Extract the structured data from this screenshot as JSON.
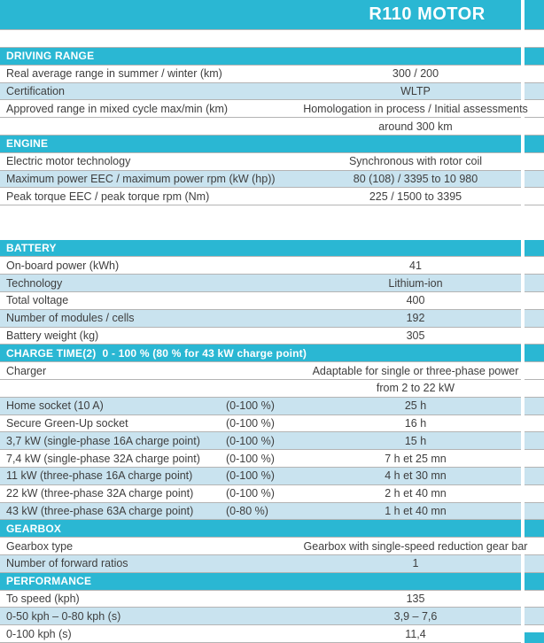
{
  "title": "R110 MOTOR",
  "colors": {
    "accent": "#2ab7d3",
    "alt_row": "#c9e3ef",
    "header_text": "#ffffff",
    "body_text": "#3e3e3e",
    "border": "#b4b4b4"
  },
  "sections": [
    {
      "header": "DRIVING RANGE",
      "gap_after": false,
      "rows": [
        {
          "label": "Real average range in summer / winter (km)",
          "qualifier": "",
          "value": "300 / 200",
          "alt": false
        },
        {
          "label": "Certification",
          "qualifier": "",
          "value": "WLTP",
          "alt": true
        },
        {
          "label": "Approved range in mixed cycle max/min (km)",
          "qualifier": "",
          "value": "Homologation in process / Initial assessments",
          "alt": false
        },
        {
          "label": "",
          "qualifier": "",
          "value": "around 300 km",
          "alt": false
        }
      ]
    },
    {
      "header": "ENGINE",
      "gap_after": true,
      "rows": [
        {
          "label": "Electric motor technology",
          "qualifier": "",
          "value": "Synchronous with rotor coil",
          "alt": false
        },
        {
          "label": "Maximum power EEC / maximum power rpm (kW (hp))",
          "qualifier": "",
          "value": "80 (108) / 3395 to 10 980",
          "alt": true
        },
        {
          "label": "Peak torque EEC / peak torque rpm (Nm)",
          "qualifier": "",
          "value": "225 / 1500 to 3395",
          "alt": false
        }
      ]
    },
    {
      "header": "BATTERY",
      "gap_after": false,
      "rows": [
        {
          "label": "On-board power (kWh)",
          "qualifier": "",
          "value": "41",
          "alt": false
        },
        {
          "label": "Technology",
          "qualifier": "",
          "value": "Lithium-ion",
          "alt": true
        },
        {
          "label": "Total voltage",
          "qualifier": "",
          "value": "400",
          "alt": false
        },
        {
          "label": "Number of modules / cells",
          "qualifier": "",
          "value": "192",
          "alt": true
        },
        {
          "label": "Battery weight (kg)",
          "qualifier": "",
          "value": "305",
          "alt": false
        }
      ]
    },
    {
      "header": "CHARGE TIME(2)  0 - 100 % (80 % for 43 kW charge point)",
      "gap_after": false,
      "rows": [
        {
          "label": "Charger",
          "qualifier": "",
          "value": "Adaptable for single or three-phase power",
          "alt": false
        },
        {
          "label": "",
          "qualifier": "",
          "value": "from 2 to 22 kW",
          "alt": false
        },
        {
          "label": "Home socket (10 A)",
          "qualifier": "(0-100 %)",
          "value": "25 h",
          "alt": true
        },
        {
          "label": "Secure Green-Up socket",
          "qualifier": "(0-100 %)",
          "value": "16 h",
          "alt": false
        },
        {
          "label": "3,7 kW (single-phase 16A charge point)",
          "qualifier": "(0-100 %)",
          "value": "15 h",
          "alt": true
        },
        {
          "label": "7,4 kW (single-phase 32A charge point)",
          "qualifier": "(0-100 %)",
          "value": "7 h et 25 mn",
          "alt": false
        },
        {
          "label": "11 kW (three-phase 16A charge point)",
          "qualifier": "(0-100 %)",
          "value": "4 h et 30 mn",
          "alt": true
        },
        {
          "label": "22 kW (three-phase 32A charge point)",
          "qualifier": "(0-100 %)",
          "value": "2 h et 40 mn",
          "alt": false
        },
        {
          "label": "43 kW (three-phase 63A charge point)",
          "qualifier": "(0-80 %)",
          "value": "1 h et 40 mn",
          "alt": true
        }
      ]
    },
    {
      "header": "GEARBOX",
      "gap_after": false,
      "rows": [
        {
          "label": "Gearbox type",
          "qualifier": "",
          "value": "Gearbox with single-speed reduction gear bar",
          "alt": false
        },
        {
          "label": "Number of forward ratios",
          "qualifier": "",
          "value": "1",
          "alt": true
        }
      ]
    },
    {
      "header": "PERFORMANCE",
      "gap_after": false,
      "rows": [
        {
          "label": "To speed (kph)",
          "qualifier": "",
          "value": "135",
          "alt": false
        },
        {
          "label": "0-50 kph – 0-80 kph (s)",
          "qualifier": "",
          "value": "3,9 – 7,6",
          "alt": true
        },
        {
          "label": "0-100 kph (s)",
          "qualifier": "",
          "value": "11,4",
          "alt": false
        }
      ]
    }
  ]
}
